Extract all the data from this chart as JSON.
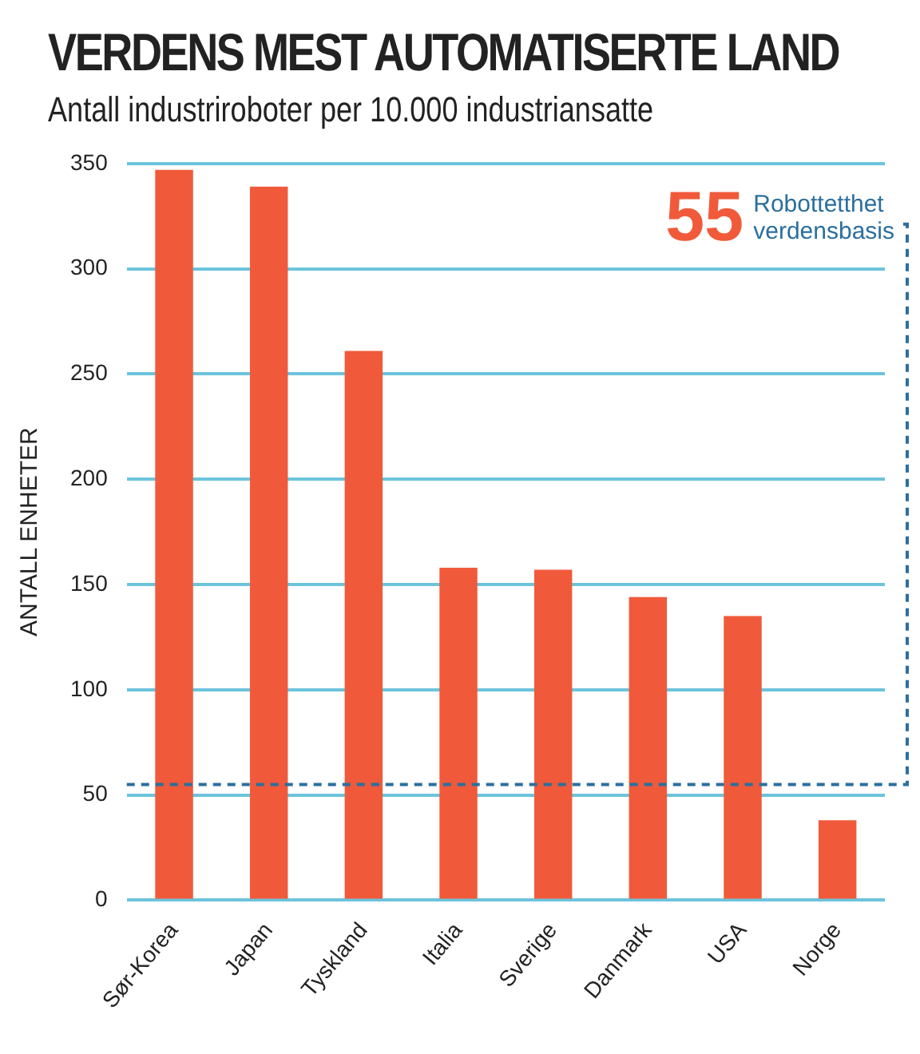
{
  "chart_data": {
    "type": "bar",
    "title": "VERDENS MEST AUTOMATISERTE LAND",
    "subtitle": "Antall industriroboter per 10.000 industriansatte",
    "ylabel": "ANTALL ENHETER",
    "categories": [
      "Sør-Korea",
      "Japan",
      "Tyskland",
      "Italia",
      "Sverige",
      "Danmark",
      "USA",
      "Norge"
    ],
    "values": [
      347,
      339,
      261,
      158,
      157,
      144,
      135,
      38
    ],
    "color": "#f05a3a",
    "ylim": [
      0,
      350
    ],
    "yticks": [
      0,
      50,
      100,
      150,
      200,
      250,
      300,
      350
    ],
    "grid": "y",
    "annotations": [
      "55"
    ],
    "ref_lines": [
      {
        "axis": "y",
        "value": 55,
        "label": "Robottetthet verdensbasis",
        "color": "#2b6f9e",
        "line_style": "dashed"
      }
    ]
  }
}
